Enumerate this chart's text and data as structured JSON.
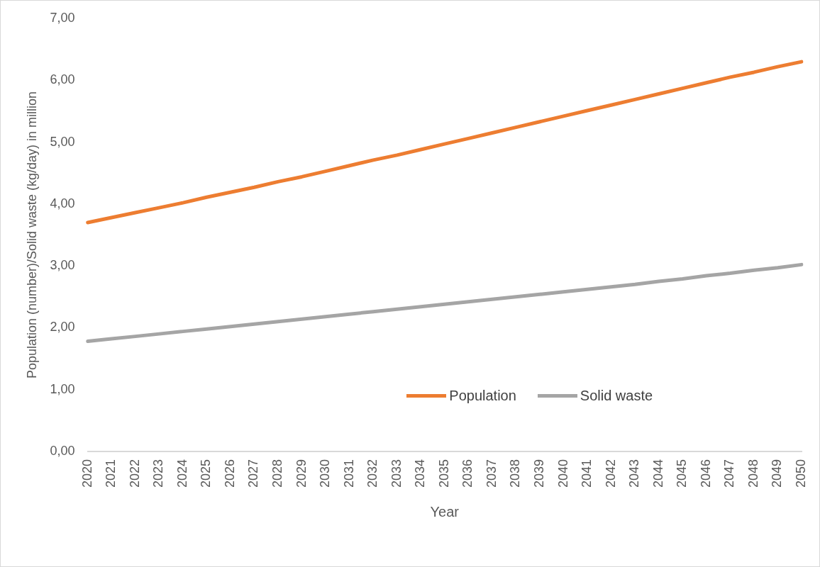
{
  "chart_data": {
    "type": "line",
    "xlabel": "Year",
    "ylabel": "Population (number)/Solid waste (kg/day) in million",
    "categories": [
      "2020",
      "2021",
      "2022",
      "2023",
      "2024",
      "2025",
      "2026",
      "2027",
      "2028",
      "2029",
      "2030",
      "2031",
      "2032",
      "2033",
      "2034",
      "2035",
      "2036",
      "2037",
      "2038",
      "2039",
      "2040",
      "2041",
      "2042",
      "2043",
      "2044",
      "2045",
      "2046",
      "2047",
      "2048",
      "2049",
      "2050"
    ],
    "series": [
      {
        "name": "Population",
        "color": "#ed7d31",
        "values": [
          3.7,
          3.78,
          3.86,
          3.94,
          4.02,
          4.11,
          4.19,
          4.27,
          4.36,
          4.44,
          4.53,
          4.62,
          4.71,
          4.79,
          4.88,
          4.97,
          5.06,
          5.15,
          5.24,
          5.33,
          5.42,
          5.51,
          5.6,
          5.69,
          5.78,
          5.87,
          5.96,
          6.05,
          6.13,
          6.22,
          6.3
        ]
      },
      {
        "name": "Solid waste",
        "color": "#a5a5a5",
        "values": [
          1.78,
          1.82,
          1.86,
          1.9,
          1.94,
          1.98,
          2.02,
          2.06,
          2.1,
          2.14,
          2.18,
          2.22,
          2.26,
          2.3,
          2.34,
          2.38,
          2.42,
          2.46,
          2.5,
          2.54,
          2.58,
          2.62,
          2.66,
          2.7,
          2.75,
          2.79,
          2.84,
          2.88,
          2.93,
          2.97,
          3.02
        ]
      }
    ],
    "ylim": [
      0,
      7
    ],
    "yticks": [
      {
        "value": 0,
        "label": "0,00"
      },
      {
        "value": 1,
        "label": "1,00"
      },
      {
        "value": 2,
        "label": "2,00"
      },
      {
        "value": 3,
        "label": "3,00"
      },
      {
        "value": 4,
        "label": "4,00"
      },
      {
        "value": 5,
        "label": "5,00"
      },
      {
        "value": 6,
        "label": "6,00"
      },
      {
        "value": 7,
        "label": "7,00"
      }
    ],
    "grid": false,
    "legend": "bottom",
    "marker": "none",
    "line_style": "solid"
  }
}
